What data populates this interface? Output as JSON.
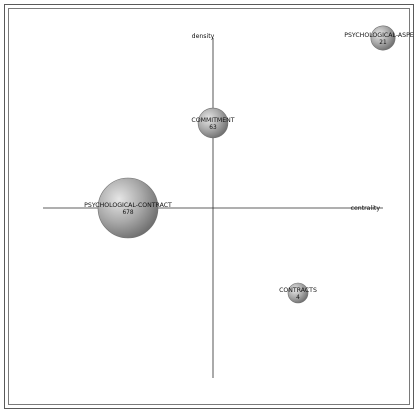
{
  "chart_data": {
    "type": "scatter",
    "title": "",
    "xlabel": "centrality",
    "ylabel": "density",
    "xlim": [
      -1,
      1
    ],
    "ylim": [
      -1,
      1
    ],
    "grid": false,
    "legend": "none",
    "marker_color_light": "#d9d9d9",
    "marker_color_dark": "#6f6f6f",
    "points": [
      {
        "label": "PSYCHOLOGICAL-ASPE",
        "count": "21",
        "x": 1.0,
        "y": 1.0,
        "size": 21
      },
      {
        "label": "COMMITMENT",
        "count": "63",
        "x": 0.0,
        "y": 0.5,
        "size": 63
      },
      {
        "label": "PSYCHOLOGICAL-CONTRACT",
        "count": "678",
        "x": -0.5,
        "y": 0.0,
        "size": 678
      },
      {
        "label": "CONTRACTS",
        "count": "4",
        "x": 0.5,
        "y": -0.5,
        "size": 4
      }
    ]
  }
}
